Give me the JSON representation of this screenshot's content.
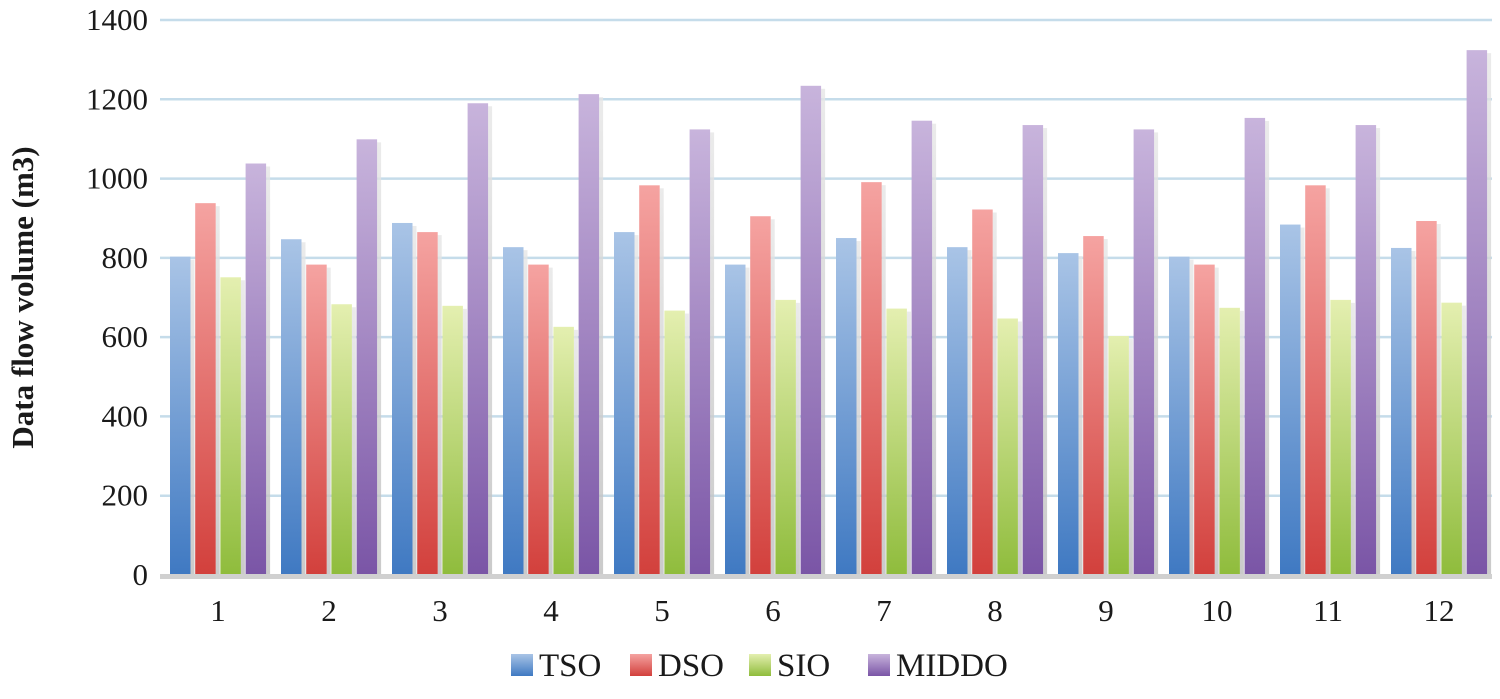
{
  "chart_data": {
    "type": "bar",
    "title": "",
    "xlabel": "",
    "ylabel": "Data flow volume (m3)",
    "ylim": [
      0,
      1400
    ],
    "yticks": [
      0,
      200,
      400,
      600,
      800,
      1000,
      1200,
      1400
    ],
    "grid": true,
    "legend_position": "bottom-center",
    "categories": [
      "1",
      "2",
      "3",
      "4",
      "5",
      "6",
      "7",
      "8",
      "9",
      "10",
      "11",
      "12"
    ],
    "series": [
      {
        "name": "TSO",
        "color_top": "#a9c4e6",
        "color_bottom": "#3f79c2",
        "values": [
          803,
          847,
          888,
          827,
          865,
          783,
          850,
          827,
          812,
          803,
          884,
          825
        ]
      },
      {
        "name": "DSO",
        "color_top": "#f5a3a1",
        "color_bottom": "#d2403c",
        "values": [
          938,
          783,
          865,
          783,
          983,
          905,
          991,
          922,
          855,
          783,
          983,
          893
        ]
      },
      {
        "name": "SIO",
        "color_top": "#e4efb0",
        "color_bottom": "#8fbc3c",
        "values": [
          751,
          683,
          679,
          626,
          667,
          694,
          672,
          647,
          603,
          674,
          694,
          687
        ]
      },
      {
        "name": "MIDDO",
        "color_top": "#c8b4dc",
        "color_bottom": "#7a55a6",
        "values": [
          1038,
          1099,
          1190,
          1213,
          1124,
          1234,
          1146,
          1135,
          1124,
          1153,
          1135,
          1324
        ]
      }
    ]
  }
}
